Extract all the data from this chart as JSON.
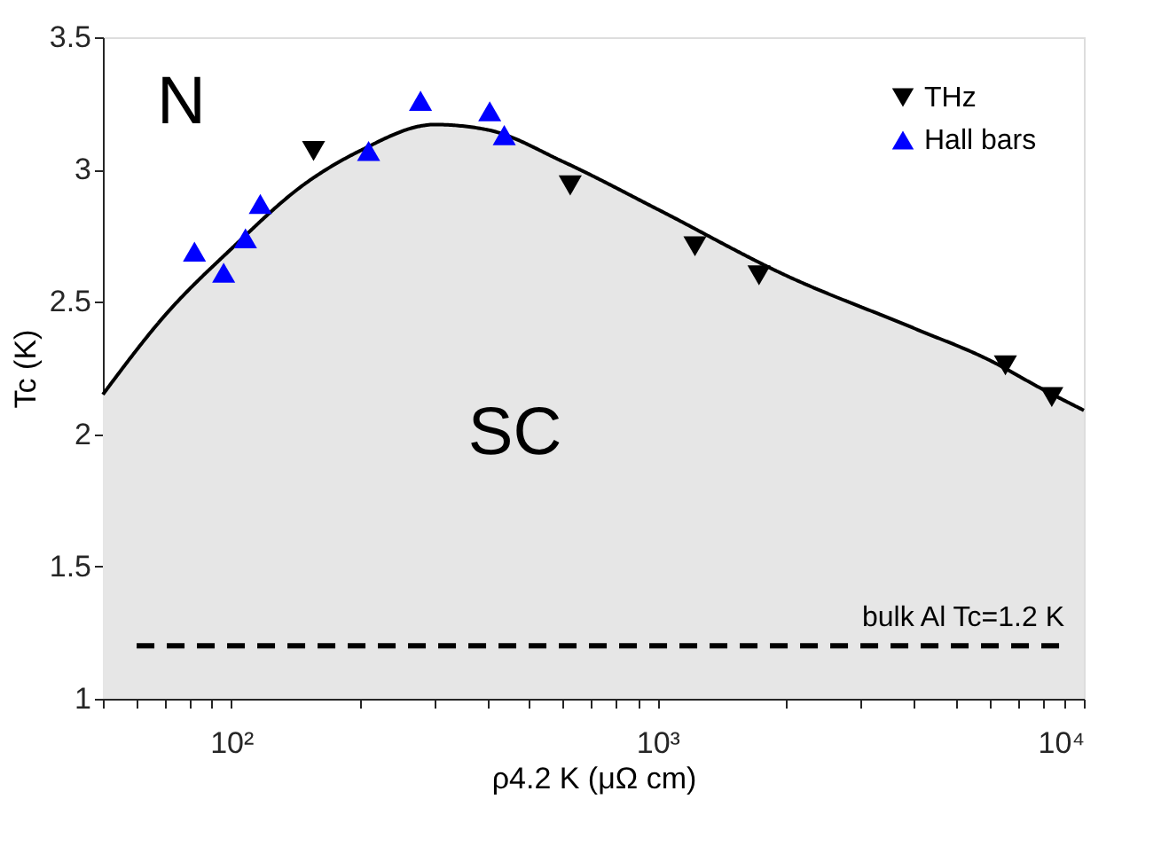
{
  "chart_data": {
    "type": "scatter",
    "xlabel": "ρ4.2 K (μΩ cm)",
    "ylabel": "Tc (K)",
    "log": "x",
    "grid": false,
    "legend": "top right",
    "xlim": [
      50,
      10000
    ],
    "ylim": [
      1,
      3.5
    ],
    "xticks": [
      {
        "value": 50,
        "label": null
      },
      {
        "value": 60,
        "label": null
      },
      {
        "value": 70,
        "label": null
      },
      {
        "value": 80,
        "label": null
      },
      {
        "value": 90,
        "label": null
      },
      {
        "value": 100,
        "label": "10²"
      },
      {
        "value": 200,
        "label": null
      },
      {
        "value": 300,
        "label": null
      },
      {
        "value": 400,
        "label": null
      },
      {
        "value": 500,
        "label": null
      },
      {
        "value": 600,
        "label": null
      },
      {
        "value": 700,
        "label": null
      },
      {
        "value": 800,
        "label": null
      },
      {
        "value": 900,
        "label": null
      },
      {
        "value": 1000,
        "label": "10³"
      },
      {
        "value": 2000,
        "label": null
      },
      {
        "value": 3000,
        "label": null
      },
      {
        "value": 4000,
        "label": null
      },
      {
        "value": 5000,
        "label": null
      },
      {
        "value": 6000,
        "label": null
      },
      {
        "value": 7000,
        "label": null
      },
      {
        "value": 8000,
        "label": null
      },
      {
        "value": 9000,
        "label": null
      },
      {
        "value": 10000,
        "label": "10⁴"
      }
    ],
    "yticks": [
      1,
      1.5,
      2,
      2.5,
      3,
      3.5
    ],
    "series": [
      {
        "type": "area",
        "color": "#000000",
        "line_style": "solid",
        "marker": "none",
        "x": [
          50,
          70,
          100,
          150,
          200,
          300,
          400,
          600,
          1000,
          2000,
          4000,
          6000,
          8000,
          10000
        ],
        "values": [
          2.15,
          2.45,
          2.7,
          2.95,
          3.07,
          3.17,
          3.15,
          3.03,
          2.85,
          2.6,
          2.4,
          2.28,
          2.17,
          2.09
        ]
      },
      {
        "name": "THz",
        "color": "#000000",
        "marker": "triangle-down",
        "x": [
          156,
          624,
          1224,
          1730,
          6546,
          8410
        ],
        "values": [
          3.07,
          2.94,
          2.71,
          2.6,
          2.26,
          2.14
        ]
      },
      {
        "name": "Hall bars",
        "color": "#0000ff",
        "marker": "triangle",
        "x": [
          82,
          96,
          108,
          117,
          210,
          278,
          404,
          437
        ],
        "values": [
          2.69,
          2.61,
          2.74,
          2.87,
          3.07,
          3.26,
          3.22,
          3.13
        ]
      }
    ],
    "ref_lines": [
      {
        "axis": "y",
        "value": 1.2,
        "label": "bulk Al Tc=1.2 K",
        "color": "#000000",
        "line_style": "dashed"
      }
    ],
    "annotations": [
      "N",
      "SC"
    ]
  }
}
